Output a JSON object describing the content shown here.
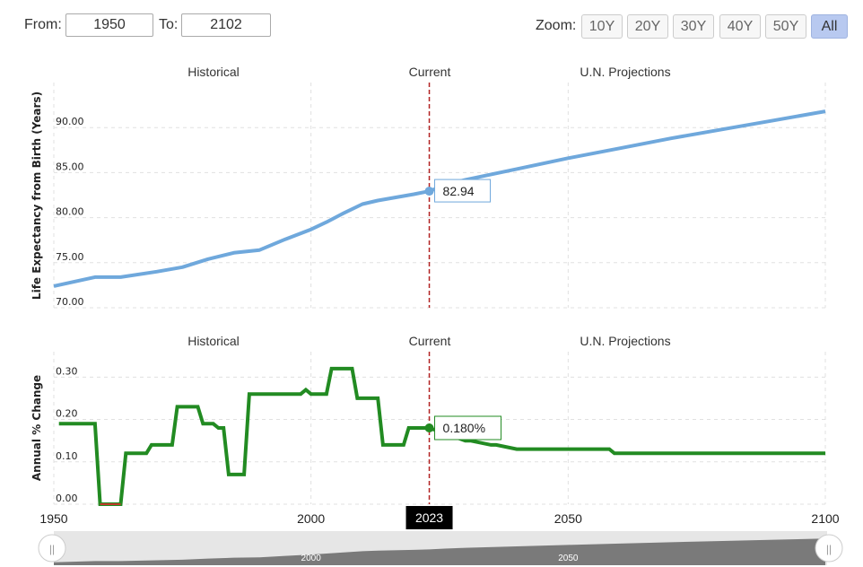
{
  "controls": {
    "from_label": "From:",
    "from_value": "1950",
    "to_label": "To:",
    "to_value": "2102",
    "zoom_label": "Zoom:",
    "zoom_options": [
      "10Y",
      "20Y",
      "30Y",
      "40Y",
      "50Y",
      "All"
    ],
    "zoom_selected": "All"
  },
  "chart_data": [
    {
      "type": "line",
      "section_labels": [
        "Historical",
        "Current",
        "U.N. Projections"
      ],
      "ylabel": "Life Expectancy from Birth (Years)",
      "yticks": [
        "70.00",
        "75.00",
        "80.00",
        "85.00",
        "90.00"
      ],
      "ylim": [
        70,
        95
      ],
      "xlim": [
        1950,
        2100
      ],
      "current_year": 2023,
      "tooltip_value": "82.94",
      "color": "#6fa8dc",
      "series": [
        {
          "x": [
            1950,
            1958,
            1963,
            1970,
            1975,
            1980,
            1985,
            1990,
            1995,
            2000,
            2003,
            2006,
            2010,
            2013,
            2016,
            2020,
            2023,
            2026,
            2030,
            2040,
            2050,
            2060,
            2070,
            2080,
            2090,
            2100
          ],
          "values": [
            72.4,
            73.4,
            73.4,
            74.0,
            74.5,
            75.4,
            76.1,
            76.4,
            77.6,
            78.7,
            79.5,
            80.4,
            81.5,
            81.9,
            82.2,
            82.6,
            82.94,
            83.6,
            84.2,
            85.4,
            86.6,
            87.7,
            88.8,
            89.8,
            90.8,
            91.8
          ]
        }
      ]
    },
    {
      "type": "line",
      "section_labels": [
        "Historical",
        "Current",
        "U.N. Projections"
      ],
      "ylabel": "Annual % Change",
      "yticks": [
        "0.00",
        "0.10",
        "0.20",
        "0.30"
      ],
      "ylim": [
        0,
        0.36
      ],
      "xlim": [
        1950,
        2100
      ],
      "current_year": 2023,
      "tooltip_value": "0.180%",
      "color": "#228b22",
      "negative_color": "#c0392b",
      "series": [
        {
          "x": [
            1951,
            1958,
            1959,
            1963,
            1964,
            1968,
            1969,
            1973,
            1974,
            1978,
            1979,
            1981,
            1982,
            1983,
            1984,
            1987,
            1988,
            1998,
            1999,
            2000,
            2003,
            2004,
            2008,
            2009,
            2013,
            2014,
            2018,
            2019,
            2023,
            2030,
            2031,
            2035,
            2036,
            2040,
            2041,
            2058,
            2059,
            2100
          ],
          "values": [
            0.19,
            0.19,
            0.0,
            0.0,
            0.12,
            0.12,
            0.14,
            0.14,
            0.23,
            0.23,
            0.19,
            0.19,
            0.18,
            0.18,
            0.07,
            0.07,
            0.26,
            0.26,
            0.27,
            0.26,
            0.26,
            0.32,
            0.32,
            0.25,
            0.25,
            0.14,
            0.14,
            0.18,
            0.18,
            0.15,
            0.15,
            0.14,
            0.14,
            0.13,
            0.13,
            0.13,
            0.12,
            0.12
          ]
        }
      ]
    }
  ],
  "x_axis": {
    "ticks": [
      "1950",
      "2000",
      "2050",
      "2100"
    ],
    "current_label": "2023"
  },
  "navigator": {
    "ticks": [
      "2000",
      "2050"
    ]
  }
}
